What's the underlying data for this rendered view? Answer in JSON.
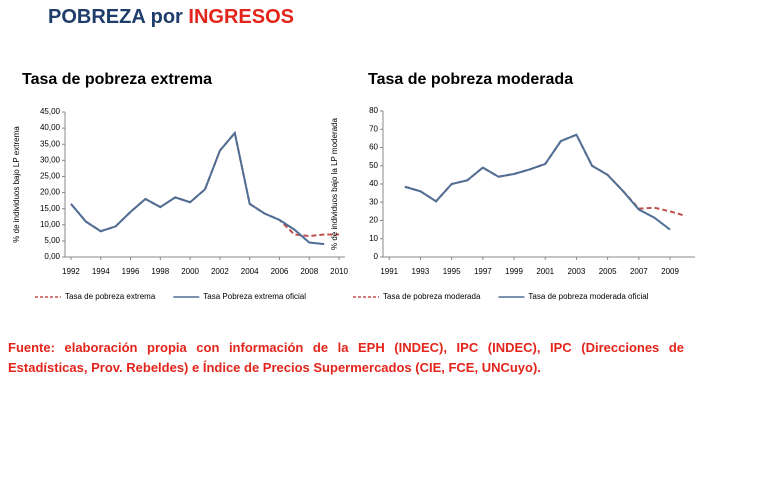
{
  "header": {
    "title_part1": "POBREZA por",
    "title_part2": "INGRESOS"
  },
  "chart_data": [
    {
      "type": "line",
      "title": "Tasa de pobreza extrema",
      "y_label": "% de individuos bajo LP extrema",
      "x": [
        1992,
        1993,
        1994,
        1995,
        1996,
        1997,
        1998,
        1999,
        2000,
        2001,
        2002,
        2003,
        2004,
        2005,
        2006,
        2007,
        2008,
        2009,
        2010
      ],
      "xlim": [
        1991.6,
        2010.4
      ],
      "xticks": [
        1992,
        1994,
        1996,
        1998,
        2000,
        2002,
        2004,
        2006,
        2008,
        2010
      ],
      "ylim": [
        0,
        45
      ],
      "yticks": [
        {
          "value": 0,
          "label": "0,00"
        },
        {
          "value": 5,
          "label": "5,00"
        },
        {
          "value": 10,
          "label": "10,00"
        },
        {
          "value": 15,
          "label": "15,00"
        },
        {
          "value": 20,
          "label": "20,00"
        },
        {
          "value": 25,
          "label": "25,00"
        },
        {
          "value": 30,
          "label": "30,00"
        },
        {
          "value": 35,
          "label": "35,00"
        },
        {
          "value": 40,
          "label": "40,00"
        },
        {
          "value": 45,
          "label": "45,00"
        }
      ],
      "series": [
        {
          "name": "Tasa de pobreza extrema",
          "color": "#c0504d",
          "style": "dashed",
          "values": [
            16.5,
            11,
            8,
            9.5,
            14,
            18,
            15.5,
            18.5,
            17,
            21,
            33,
            38.5,
            16.5,
            13.5,
            11.5,
            7,
            6.5,
            7,
            7
          ]
        },
        {
          "name": "Tasa Pobreza extrema oficial",
          "color": "#4f6f96",
          "style": "solid",
          "values": [
            16.5,
            11,
            8,
            9.5,
            14,
            18,
            15.5,
            18.5,
            17,
            21,
            33,
            38.5,
            16.5,
            13.5,
            11.5,
            8.5,
            4.5,
            4,
            null
          ]
        }
      ]
    },
    {
      "type": "line",
      "title": "Tasa de pobreza moderada",
      "y_label": "% de individuos bajo la LP moderada",
      "x": [
        1992,
        1993,
        1994,
        1995,
        1996,
        1997,
        1998,
        1999,
        2000,
        2001,
        2002,
        2003,
        2004,
        2005,
        2006,
        2007,
        2008,
        2009,
        2010
      ],
      "xlim": [
        1990.6,
        2010.6
      ],
      "xticks": [
        1991,
        1993,
        1995,
        1997,
        1999,
        2001,
        2003,
        2005,
        2007,
        2009
      ],
      "ylim": [
        0,
        80
      ],
      "yticks": [
        0,
        10,
        20,
        30,
        40,
        50,
        60,
        70,
        80
      ],
      "series": [
        {
          "name": "Tasa de pobreza moderada",
          "color": "#c0504d",
          "style": "dashed",
          "values": [
            38.5,
            36,
            30.5,
            40,
            42,
            49,
            44,
            45.5,
            48,
            51,
            63.5,
            67,
            50,
            45,
            36,
            26.5,
            27,
            25,
            22.5
          ]
        },
        {
          "name": "Tasa de pobreza moderada oficial",
          "color": "#4f6f96",
          "style": "solid",
          "values": [
            38.5,
            36,
            30.5,
            40,
            42,
            49,
            44,
            45.5,
            48,
            51,
            63.5,
            67,
            50,
            45,
            36,
            26,
            21.5,
            15,
            null
          ]
        }
      ]
    }
  ],
  "source": "Fuente: elaboración propia con información de la EPH (INDEC), IPC (INDEC), IPC (Direcciones de Estadísticas, Prov. Rebeldes) e Índice de Precios Supermercados (CIE, FCE, UNCuyo)."
}
